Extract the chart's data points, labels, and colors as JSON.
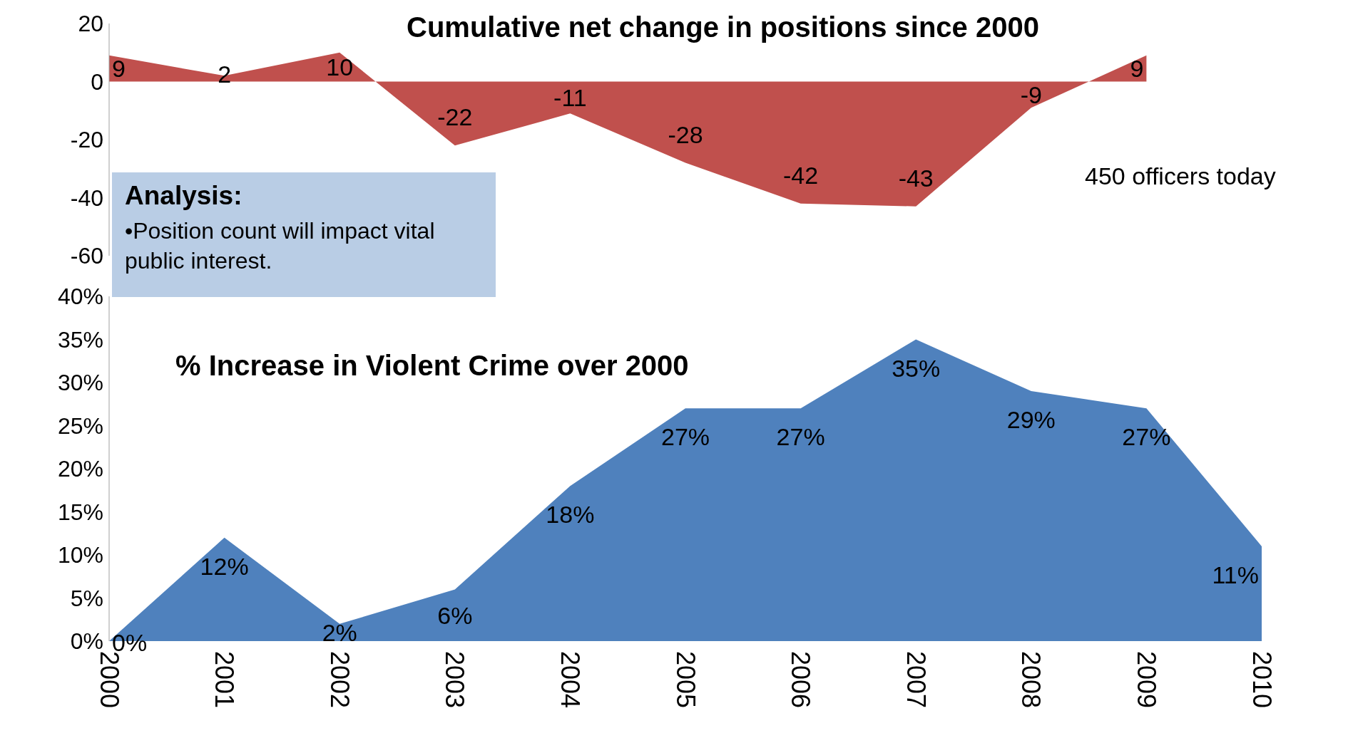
{
  "chart_data": [
    {
      "type": "area",
      "title": "Cumulative net change in positions since 2000",
      "categories": [
        "2000",
        "2001",
        "2002",
        "2003",
        "2004",
        "2005",
        "2006",
        "2007",
        "2008",
        "2009"
      ],
      "values": [
        9,
        2,
        10,
        -22,
        -11,
        -28,
        -42,
        -43,
        -9,
        9
      ],
      "color": "#c0504d",
      "ylim": [
        -60,
        20
      ],
      "yticks": [
        20,
        0,
        -20,
        -40,
        -60
      ],
      "data_labels": true,
      "tick_labels": "y",
      "annotations": [
        "Analysis:",
        "•Position count will impact vital public interest.",
        "450 officers today"
      ]
    },
    {
      "type": "area",
      "title": "% Increase in Violent Crime over 2000",
      "categories": [
        "2000",
        "2001",
        "2002",
        "2003",
        "2004",
        "2005",
        "2006",
        "2007",
        "2008",
        "2009",
        "2010"
      ],
      "values": [
        0,
        12,
        2,
        6,
        18,
        27,
        27,
        35,
        29,
        27,
        11
      ],
      "value_labels": [
        "0%",
        "12%",
        "2%",
        "6%",
        "18%",
        "27%",
        "27%",
        "35%",
        "29%",
        "27%",
        "11%"
      ],
      "color": "#4f81bd",
      "ylim": [
        0,
        40
      ],
      "yticks": [
        {
          "value": 0,
          "label": "0%"
        },
        {
          "value": 5,
          "label": "5%"
        },
        {
          "value": 10,
          "label": "10%"
        },
        {
          "value": 15,
          "label": "15%"
        },
        {
          "value": 20,
          "label": "20%"
        },
        {
          "value": 25,
          "label": "25%"
        },
        {
          "value": 30,
          "label": "30%"
        },
        {
          "value": 35,
          "label": "35%"
        },
        {
          "value": 40,
          "label": "40%"
        }
      ]
    }
  ]
}
